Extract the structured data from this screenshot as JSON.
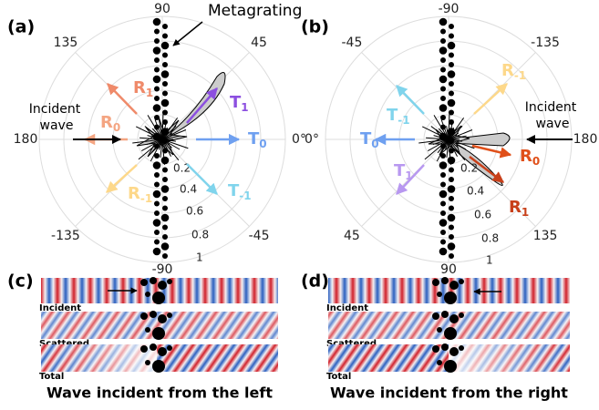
{
  "panels": [
    {
      "label": "(a)",
      "annotation": "Metagrating",
      "incident_label": [
        "Incident",
        "wave"
      ],
      "angle_labels": [
        "90",
        "45",
        "0°",
        "-45",
        "-90",
        "-135",
        "180",
        "135"
      ],
      "radial_labels": [
        "0.2",
        "0.4",
        "0.6",
        "0.8",
        "1"
      ],
      "beams": [
        {
          "name": "R",
          "sub": "1"
        },
        {
          "name": "R",
          "sub": "0"
        },
        {
          "name": "R",
          "sub": "-1"
        },
        {
          "name": "T",
          "sub": "1"
        },
        {
          "name": "T",
          "sub": "0"
        },
        {
          "name": "T",
          "sub": "-1"
        }
      ]
    },
    {
      "label": "(b)",
      "incident_label": [
        "Incident",
        "wave"
      ],
      "angle_labels": [
        "-90",
        "-135",
        "180",
        "135",
        "90",
        "45",
        "0°",
        "-45"
      ],
      "radial_labels": [
        "0.2",
        "0.4",
        "0.6",
        "0.8",
        "1"
      ],
      "beams": [
        {
          "name": "R",
          "sub": "-1"
        },
        {
          "name": "T",
          "sub": "-1"
        },
        {
          "name": "T",
          "sub": "0"
        },
        {
          "name": "T",
          "sub": "1"
        },
        {
          "name": "R",
          "sub": "0"
        },
        {
          "name": "R",
          "sub": "1"
        }
      ]
    },
    {
      "label": "(c)",
      "rows": [
        "Incident",
        "Scattered",
        "Total"
      ],
      "caption": "Wave incident from the left"
    },
    {
      "label": "(d)",
      "rows": [
        "Incident",
        "Scattered",
        "Total"
      ],
      "caption": "Wave incident from the right"
    }
  ]
}
